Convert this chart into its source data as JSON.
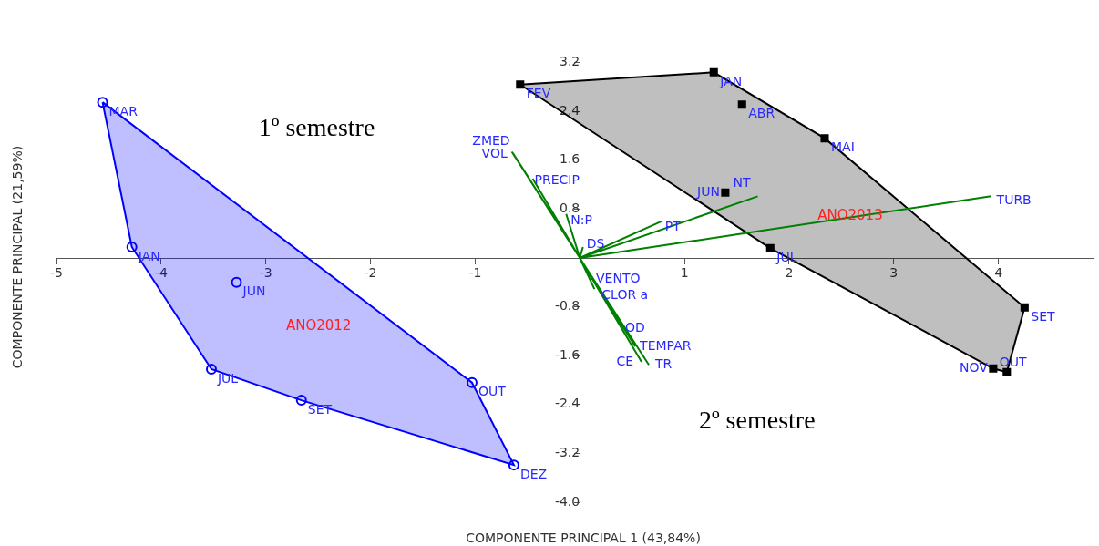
{
  "chart_data": {
    "type": "scatter",
    "xlabel": "COMPONENTE PRINCIPAL 1 (43,84%)",
    "ylabel": "COMPONENTE PRINCIPAL (21,59%)",
    "xlim": [
      -5,
      4.9
    ],
    "ylim": [
      -4.0,
      4.0
    ],
    "xticks": [
      -5,
      -4,
      -3,
      -2,
      -1,
      {
        "value": 0,
        "label": null
      },
      1,
      2,
      3,
      4
    ],
    "yticks": [
      {
        "value": -4,
        "label": "-4.0"
      },
      -3.2,
      -2.4,
      -1.6,
      -0.8,
      {
        "value": 0,
        "label": null
      },
      0.8,
      1.6,
      2.4,
      3.2
    ],
    "grid": false,
    "legend": false,
    "annotations": [
      "1º semestre",
      "2º semestre",
      "ANO2012",
      "ANO2013"
    ],
    "series": [
      {
        "type": "area",
        "color": "#0000ff",
        "x": [
          -4.56,
          -4.28,
          -3.52,
          -2.66,
          -0.63,
          -1.03,
          -4.56
        ],
        "values": [
          2.55,
          0.18,
          -1.82,
          -2.33,
          -3.39,
          -2.04,
          2.55
        ]
      },
      {
        "type": "area",
        "color": "#000000",
        "x": [
          -0.57,
          1.28,
          2.34,
          4.25,
          4.08,
          3.95,
          1.82,
          -0.57
        ],
        "values": [
          2.84,
          3.04,
          1.96,
          -0.81,
          -1.87,
          -1.81,
          0.16,
          2.84
        ]
      },
      {
        "type": "scatter",
        "color": "#0000ff",
        "marker": "circle",
        "x": [
          -4.56,
          -4.28,
          -3.28,
          -3.52,
          -2.66,
          -1.03,
          -0.63
        ],
        "values": [
          2.55,
          0.18,
          -0.4,
          -1.82,
          -2.33,
          -2.04,
          -3.39
        ],
        "value_labels": [
          "MAR",
          "JAN",
          "JUN",
          "JUL",
          "SET",
          "OUT",
          "DEZ"
        ]
      },
      {
        "type": "scatter",
        "color": "#000000",
        "marker": "square",
        "x": [
          -0.57,
          1.28,
          1.55,
          2.34,
          1.39,
          1.82,
          4.25,
          4.08,
          3.95
        ],
        "values": [
          2.84,
          3.04,
          2.51,
          1.96,
          1.07,
          0.16,
          -0.81,
          -1.87,
          -1.81
        ],
        "value_labels": [
          "FEV",
          "JAN",
          "ABR",
          "MAI",
          "JUN",
          "JUL",
          "SET",
          "OUT",
          "NOV"
        ]
      },
      {
        "type": "line",
        "color": "#008000",
        "x": [
          0,
          -0.65,
          null,
          0,
          -0.64,
          null,
          0,
          -0.45,
          null,
          0,
          -0.13,
          null,
          0,
          0.03,
          null,
          0,
          0.78,
          null,
          0,
          1.7,
          null,
          0,
          3.93,
          null,
          0,
          0.12,
          null,
          0,
          0.14,
          null,
          0,
          0.45,
          null,
          0,
          0.53,
          null,
          0,
          0.59,
          null,
          0,
          0.66
        ],
        "values": [
          0,
          1.74,
          null,
          0,
          1.72,
          null,
          0,
          1.3,
          null,
          0,
          0.72,
          null,
          0,
          0.18,
          null,
          0,
          0.6,
          null,
          0,
          1.01,
          null,
          0,
          1.01,
          null,
          0,
          -0.35,
          null,
          0,
          -0.51,
          null,
          0,
          -1.22,
          null,
          0,
          -1.45,
          null,
          0,
          -1.7,
          null,
          0,
          -1.75
        ],
        "value_labels": [
          null,
          "ZMED",
          null,
          null,
          "VOL",
          null,
          null,
          "PRECIP",
          null,
          null,
          "N:P",
          null,
          null,
          "DS",
          null,
          null,
          "PT",
          null,
          null,
          "NT",
          null,
          null,
          "TURB",
          null,
          null,
          "VENTO",
          null,
          null,
          "CLOR a",
          null,
          null,
          "OD",
          null,
          null,
          "TEMPAR",
          null,
          null,
          "CE",
          null,
          null,
          "TR"
        ]
      }
    ]
  }
}
